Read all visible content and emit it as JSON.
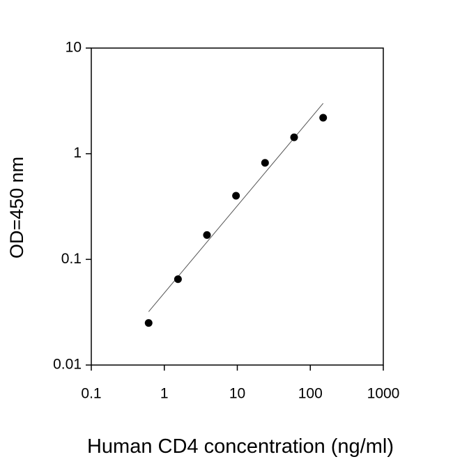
{
  "chart_data": {
    "type": "scatter",
    "x_label": "Human CD4 concentration (ng/ml)",
    "y_label": "OD=450 nm",
    "x": [
      0.61,
      1.54,
      3.84,
      9.6,
      24,
      60,
      150
    ],
    "series": [
      {
        "color": "#000000",
        "values": [
          0.025,
          0.065,
          0.17,
          0.4,
          0.82,
          1.43,
          2.19
        ]
      }
    ],
    "fit_line": {
      "color": "#555555",
      "x": [
        0.61,
        150
      ],
      "y": [
        0.032,
        3.0
      ]
    },
    "xlim": [
      0.1,
      1000
    ],
    "ylim": [
      0.01,
      10
    ],
    "xticks": [
      0.1,
      1,
      10,
      100,
      1000
    ],
    "yticks": [
      0.01,
      0.1,
      1,
      10
    ],
    "log_x": true,
    "log_y": true,
    "grid": false
  }
}
